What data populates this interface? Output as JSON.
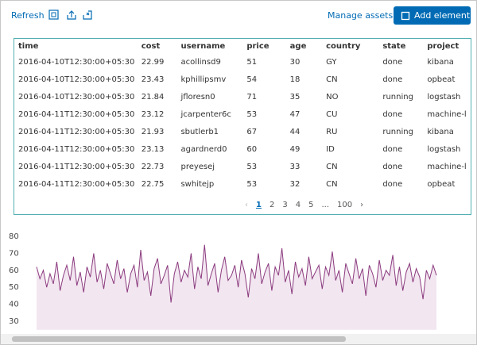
{
  "toolbar": {
    "refresh": "Refresh",
    "manage_assets": "Manage assets",
    "add_element": "Add element"
  },
  "table": {
    "columns": [
      "time",
      "cost",
      "username",
      "price",
      "age",
      "country",
      "state",
      "project"
    ],
    "rows": [
      [
        "2016-04-10T12:30:00+05:30",
        "22.99",
        "acollinsd9",
        "51",
        "30",
        "GY",
        "done",
        "kibana"
      ],
      [
        "2016-04-10T12:30:00+05:30",
        "23.43",
        "kphillipsmv",
        "54",
        "18",
        "CN",
        "done",
        "opbeat"
      ],
      [
        "2016-04-10T12:30:00+05:30",
        "21.84",
        "jfloresn0",
        "71",
        "35",
        "NO",
        "running",
        "logstash"
      ],
      [
        "2016-04-11T12:30:00+05:30",
        "23.12",
        "jcarpenter6c",
        "53",
        "47",
        "CU",
        "done",
        "machine-l"
      ],
      [
        "2016-04-11T12:30:00+05:30",
        "21.93",
        "sbutlerb1",
        "67",
        "44",
        "RU",
        "running",
        "kibana"
      ],
      [
        "2016-04-11T12:30:00+05:30",
        "23.13",
        "agardnerd0",
        "60",
        "49",
        "ID",
        "done",
        "logstash"
      ],
      [
        "2016-04-11T12:30:00+05:30",
        "22.73",
        "preyesej",
        "53",
        "33",
        "CN",
        "done",
        "machine-l"
      ],
      [
        "2016-04-11T12:30:00+05:30",
        "22.75",
        "swhitejp",
        "53",
        "32",
        "CN",
        "done",
        "opbeat"
      ]
    ],
    "pagination": [
      "1",
      "2",
      "3",
      "4",
      "5",
      "...",
      "100"
    ]
  },
  "chart_data": {
    "type": "area",
    "color": "#8b3a7e",
    "fill": "#f2e6f0",
    "values": [
      62,
      55,
      60,
      50,
      58,
      52,
      65,
      48,
      57,
      63,
      54,
      68,
      51,
      59,
      47,
      62,
      56,
      70,
      53,
      60,
      49,
      64,
      58,
      52,
      66,
      55,
      61,
      47,
      58,
      63,
      50,
      72,
      54,
      59,
      45,
      61,
      67,
      52,
      57,
      63,
      41,
      58,
      65,
      53,
      60,
      56,
      70,
      49,
      62,
      55,
      75,
      51,
      58,
      64,
      47,
      60,
      68,
      54,
      57,
      63,
      50,
      66,
      58,
      44,
      61,
      55,
      70,
      52,
      59,
      64,
      48,
      62,
      57,
      73,
      53,
      60,
      46,
      65,
      56,
      61,
      51,
      68,
      55,
      59,
      63,
      49,
      62,
      57,
      71,
      54,
      60,
      47,
      64,
      58,
      52,
      67,
      55,
      61,
      45,
      63,
      58,
      50,
      66,
      54,
      60,
      57,
      69,
      51,
      62,
      48,
      59,
      64,
      53,
      61,
      56,
      43,
      60,
      55,
      63,
      57
    ],
    "ylim": [
      25,
      82
    ],
    "yticks": [
      30,
      40,
      50,
      60,
      70,
      80
    ]
  }
}
